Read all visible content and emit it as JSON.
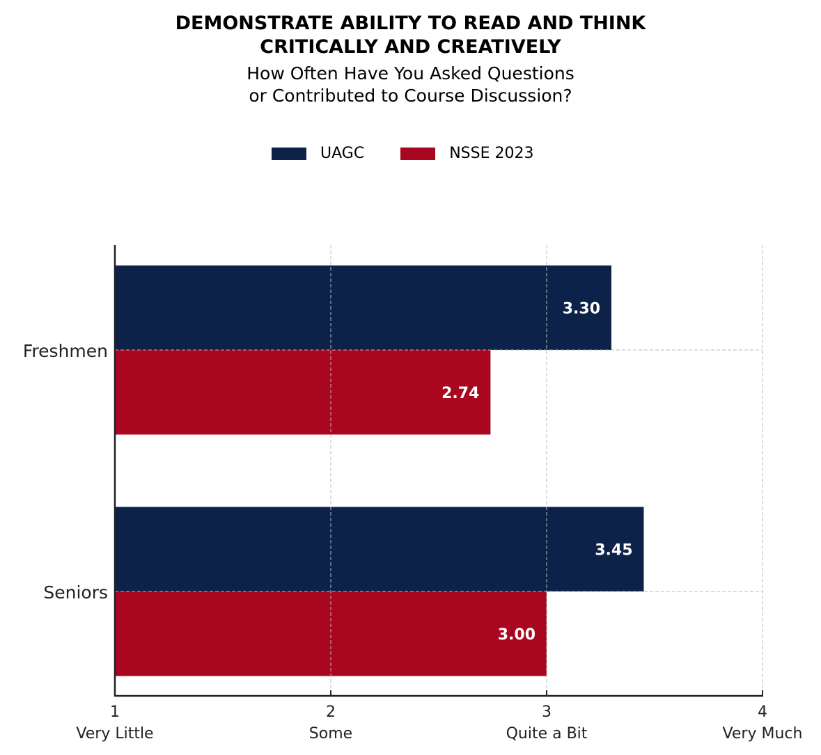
{
  "chart_data": {
    "type": "bar",
    "orientation": "horizontal",
    "title_lines": [
      "DEMONSTRATE ABILITY TO READ AND THINK",
      "CRITICALLY AND CREATIVELY"
    ],
    "subtitle_lines": [
      "How Often Have You Asked Questions",
      "or Contributed to Course Discussion?"
    ],
    "categories": [
      "Freshmen",
      "Seniors"
    ],
    "series": [
      {
        "name": "UAGC",
        "color": "#0c2249",
        "values": [
          3.3,
          3.45
        ],
        "labels": [
          "3.30",
          "3.45"
        ]
      },
      {
        "name": "NSSE 2023",
        "color": "#a90620",
        "values": [
          2.74,
          3.0
        ],
        "labels": [
          "2.74",
          "3.00"
        ]
      }
    ],
    "xlim": [
      1,
      4
    ],
    "xticks": [
      1,
      2,
      3,
      4
    ],
    "xtick_labels": [
      "1",
      "2",
      "3",
      "4"
    ],
    "xtick_sublabels": [
      "Very Little",
      "Some",
      "Quite a Bit",
      "Very Much"
    ],
    "grid": true,
    "legend_placement": "top-center"
  }
}
